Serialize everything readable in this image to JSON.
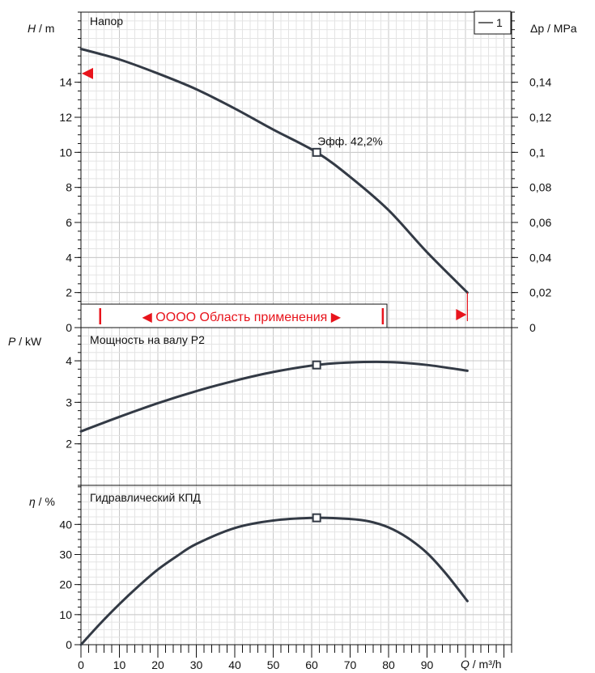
{
  "colors": {
    "curve": "#333a45",
    "grid_minor": "#e4e4e4",
    "grid_major": "#c8c8c8",
    "axis": "#111111",
    "marker_red": "#e8141c"
  },
  "chart_data": [
    {
      "type": "line",
      "title": "Напор",
      "ylabel_symbol": "H",
      "ylabel_unit": " / m",
      "y2label_symbol": "Δp",
      "y2label_unit": " / MPa",
      "xlim": [
        0,
        112
      ],
      "ylim": [
        0,
        18
      ],
      "y2lim": [
        0,
        0.18
      ],
      "yticks": [
        0,
        2,
        4,
        6,
        8,
        10,
        12,
        14
      ],
      "ytick_labels": [
        "0",
        "2",
        "4",
        "6",
        "8",
        "10",
        "12",
        "14"
      ],
      "y2ticks": [
        0,
        0.02,
        0.04,
        0.06,
        0.08,
        0.1,
        0.12,
        0.14
      ],
      "y2tick_labels": [
        "0",
        "0,02",
        "0,04",
        "0,06",
        "0,08",
        "0,1",
        "0,12",
        "0,14"
      ],
      "legend": "1",
      "legend_position": "top-right",
      "series": [
        {
          "name": "1",
          "x": [
            0,
            10,
            20,
            30,
            40,
            50,
            61.3,
            70,
            80,
            90,
            100.5
          ],
          "y": [
            15.9,
            15.3,
            14.5,
            13.6,
            12.5,
            11.3,
            10.0,
            8.6,
            6.7,
            4.3,
            2.0
          ]
        }
      ],
      "operating_point": {
        "x": 61.3,
        "y": 10.0,
        "label": "Эфф.  42,2%"
      },
      "range": {
        "label": "◀ OOOO Область применения ▶",
        "from": 5,
        "to": 78.5
      },
      "left_arrow_y": 14.5,
      "right_arrow_x": 100.5
    },
    {
      "type": "line",
      "title": "Мощность на валу P2",
      "ylabel_symbol": "P",
      "ylabel_unit": "  / kW",
      "xlim": [
        0,
        112
      ],
      "ylim": [
        1,
        4.8
      ],
      "yticks": [
        2,
        3,
        4
      ],
      "ytick_labels": [
        "2",
        "3",
        "4"
      ],
      "series": [
        {
          "name": "1",
          "x": [
            0,
            10,
            20,
            30,
            40,
            50,
            61.3,
            70,
            80,
            90,
            100.5
          ],
          "y": [
            2.3,
            2.65,
            2.98,
            3.27,
            3.52,
            3.73,
            3.9,
            3.96,
            3.97,
            3.9,
            3.76
          ]
        }
      ],
      "operating_point": {
        "x": 61.3,
        "y": 3.9
      }
    },
    {
      "type": "line",
      "title": "Гидравлический КПД",
      "ylabel_symbol": "η",
      "ylabel_unit": " / %",
      "xlabel_symbol": "Q",
      "xlabel_unit": " / m³/h",
      "xlim": [
        0,
        112
      ],
      "ylim": [
        0,
        53
      ],
      "yticks": [
        0,
        10,
        20,
        30,
        40
      ],
      "ytick_labels": [
        "0",
        "10",
        "20",
        "30",
        "40"
      ],
      "xticks": [
        0,
        10,
        20,
        30,
        40,
        50,
        60,
        70,
        80,
        90
      ],
      "xtick_labels": [
        "0",
        "10",
        "20",
        "30",
        "40",
        "50",
        "60",
        "70",
        "80",
        "90"
      ],
      "series": [
        {
          "name": "1",
          "x": [
            0,
            5,
            10,
            15,
            20,
            25,
            30,
            40,
            50,
            61.3,
            70,
            75,
            80,
            85,
            90,
            95,
            100.5
          ],
          "y": [
            0,
            7,
            13.5,
            19.5,
            25,
            29.5,
            33.5,
            38.8,
            41.3,
            42.2,
            41.8,
            41,
            39,
            35.5,
            30.5,
            23.5,
            14.5
          ]
        }
      ],
      "operating_point": {
        "x": 61.3,
        "y": 42.2
      }
    }
  ]
}
